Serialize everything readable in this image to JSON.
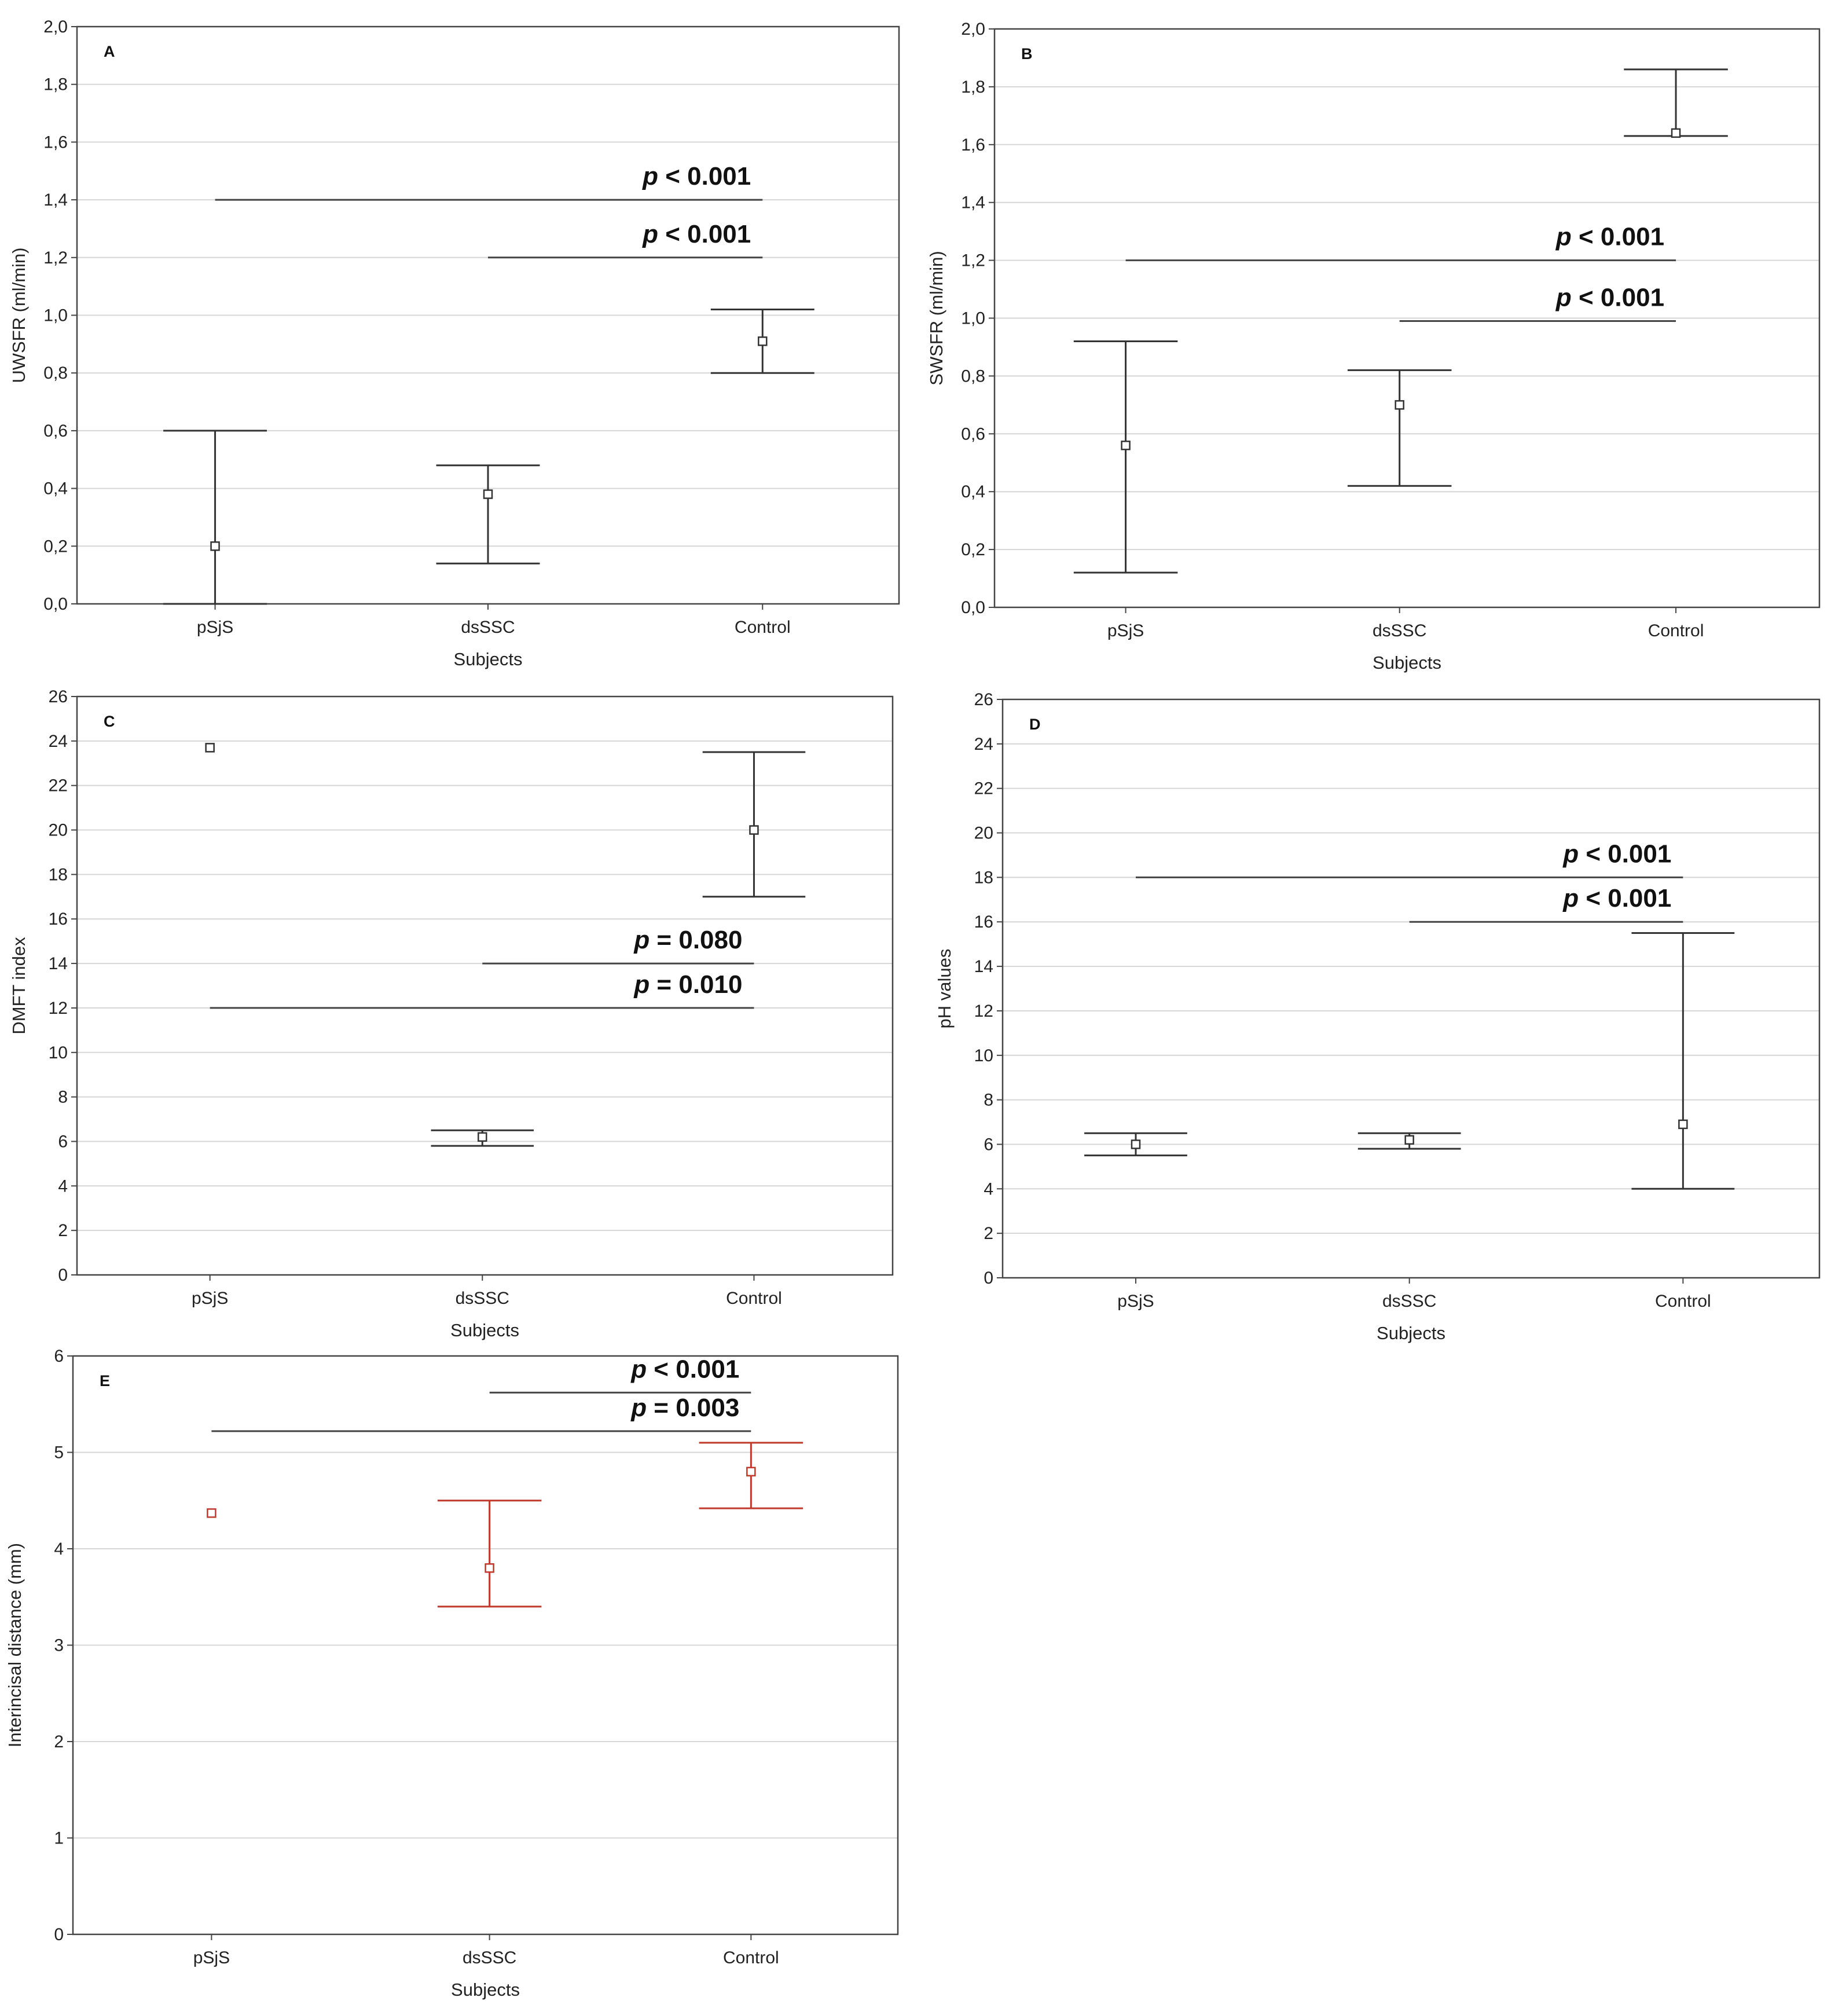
{
  "chart_data": [
    {
      "id": "A",
      "type": "scatter",
      "panel_label": "A",
      "xlabel": "Subjects",
      "ylabel": "UWSFR (ml/min)",
      "categories": [
        "pSjS",
        "dsSSC",
        "Control"
      ],
      "ylim": [
        0,
        2
      ],
      "yticks": [
        0,
        0.2,
        0.4,
        0.6,
        0.8,
        1.0,
        1.2,
        1.4,
        1.6,
        1.8,
        2.0
      ],
      "ytick_labels": [
        "0,0",
        "0,2",
        "0,4",
        "0,6",
        "0,8",
        "1,0",
        "1,2",
        "1,4",
        "1,6",
        "1,8",
        "2,0"
      ],
      "grid": true,
      "color": "#333333",
      "points": [
        {
          "category": "pSjS",
          "median": 0.2,
          "low": 0.0,
          "high": 0.6
        },
        {
          "category": "dsSSC",
          "median": 0.38,
          "low": 0.14,
          "high": 0.48
        },
        {
          "category": "Control",
          "median": 0.91,
          "low": 0.8,
          "high": 1.02
        }
      ],
      "comparisons": [
        {
          "from": "pSjS",
          "to": "Control",
          "level": 1.4,
          "p_symbol": "p",
          "p_text": " < 0.001"
        },
        {
          "from": "dsSSC",
          "to": "Control",
          "level": 1.2,
          "p_symbol": "p",
          "p_text": " < 0.001"
        }
      ]
    },
    {
      "id": "B",
      "type": "scatter",
      "panel_label": "B",
      "xlabel": "Subjects",
      "ylabel": "SWSFR (ml/min)",
      "categories": [
        "pSjS",
        "dsSSC",
        "Control"
      ],
      "ylim": [
        0,
        2
      ],
      "yticks": [
        0,
        0.2,
        0.4,
        0.6,
        0.8,
        1.0,
        1.2,
        1.4,
        1.6,
        1.8,
        2.0
      ],
      "ytick_labels": [
        "0,0",
        "0,2",
        "0,4",
        "0,6",
        "0,8",
        "1,0",
        "1,2",
        "1,4",
        "1,6",
        "1,8",
        "2,0"
      ],
      "grid": true,
      "color": "#333333",
      "points": [
        {
          "category": "pSjS",
          "median": 0.56,
          "low": 0.12,
          "high": 0.92
        },
        {
          "category": "dsSSC",
          "median": 0.7,
          "low": 0.42,
          "high": 0.82
        },
        {
          "category": "Control",
          "median": 1.64,
          "low": 1.63,
          "high": 1.86
        }
      ],
      "comparisons": [
        {
          "from": "pSjS",
          "to": "Control",
          "level": 1.2,
          "p_symbol": "p",
          "p_text": " < 0.001"
        },
        {
          "from": "dsSSC",
          "to": "Control",
          "level": 0.99,
          "p_symbol": "p",
          "p_text": " < 0.001"
        }
      ]
    },
    {
      "id": "C",
      "type": "scatter",
      "panel_label": "C",
      "xlabel": "Subjects",
      "ylabel": "DMFT index",
      "categories": [
        "pSjS",
        "dsSSC",
        "Control"
      ],
      "ylim": [
        0,
        26
      ],
      "yticks": [
        0,
        2,
        4,
        6,
        8,
        10,
        12,
        14,
        16,
        18,
        20,
        22,
        24,
        26
      ],
      "ytick_labels": [
        "0",
        "2",
        "4",
        "6",
        "8",
        "10",
        "12",
        "14",
        "16",
        "18",
        "20",
        "22",
        "24",
        "26"
      ],
      "grid": true,
      "color": "#333333",
      "points": [
        {
          "category": "pSjS",
          "median": 23.7,
          "low": 23.7,
          "high": 23.7
        },
        {
          "category": "dsSSC",
          "median": 6.2,
          "low": 5.8,
          "high": 6.5
        },
        {
          "category": "Control",
          "median": 20.0,
          "low": 17.0,
          "high": 23.5
        }
      ],
      "comparisons": [
        {
          "from": "dsSSC",
          "to": "Control",
          "level": 14,
          "p_symbol": "p",
          "p_text": " = 0.080"
        },
        {
          "from": "pSjS",
          "to": "Control",
          "level": 12,
          "p_symbol": "p",
          "p_text": " = 0.010"
        }
      ]
    },
    {
      "id": "D",
      "type": "scatter",
      "panel_label": "D",
      "xlabel": "Subjects",
      "ylabel": "pH values",
      "categories": [
        "pSjS",
        "dsSSC",
        "Control"
      ],
      "ylim": [
        0,
        26
      ],
      "yticks": [
        0,
        2,
        4,
        6,
        8,
        10,
        12,
        14,
        16,
        18,
        20,
        22,
        24,
        26
      ],
      "ytick_labels": [
        "0",
        "2",
        "4",
        "6",
        "8",
        "10",
        "12",
        "14",
        "16",
        "18",
        "20",
        "22",
        "24",
        "26"
      ],
      "grid": true,
      "color": "#333333",
      "points": [
        {
          "category": "pSjS",
          "median": 6.0,
          "low": 5.5,
          "high": 6.5
        },
        {
          "category": "dsSSC",
          "median": 6.2,
          "low": 5.8,
          "high": 6.5
        },
        {
          "category": "Control",
          "median": 6.9,
          "low": 4.0,
          "high": 15.5
        }
      ],
      "comparisons": [
        {
          "from": "pSjS",
          "to": "Control",
          "level": 18,
          "p_symbol": "p",
          "p_text": " < 0.001"
        },
        {
          "from": "dsSSC",
          "to": "Control",
          "level": 16,
          "p_symbol": "p",
          "p_text": " < 0.001"
        }
      ]
    },
    {
      "id": "E",
      "type": "scatter",
      "panel_label": "E",
      "xlabel": "Subjects",
      "ylabel": "Interincisal distance (mm)",
      "categories": [
        "pSjS",
        "dsSSC",
        "Control"
      ],
      "ylim": [
        0,
        6
      ],
      "yticks": [
        0,
        1,
        2,
        3,
        4,
        5,
        6
      ],
      "ytick_labels": [
        "0",
        "1",
        "2",
        "3",
        "4",
        "5",
        "6"
      ],
      "grid": true,
      "color": "#c0392b",
      "points": [
        {
          "category": "pSjS",
          "median": 4.37,
          "low": 4.37,
          "high": 4.37
        },
        {
          "category": "dsSSC",
          "median": 3.8,
          "low": 3.4,
          "high": 4.5
        },
        {
          "category": "Control",
          "median": 4.8,
          "low": 4.42,
          "high": 5.1
        }
      ],
      "comparisons": [
        {
          "from": "dsSSC",
          "to": "Control",
          "level": 5.62,
          "p_symbol": "p",
          "p_text": " < 0.001"
        },
        {
          "from": "pSjS",
          "to": "Control",
          "level": 5.22,
          "p_symbol": "p",
          "p_text": " = 0.003"
        }
      ]
    }
  ]
}
